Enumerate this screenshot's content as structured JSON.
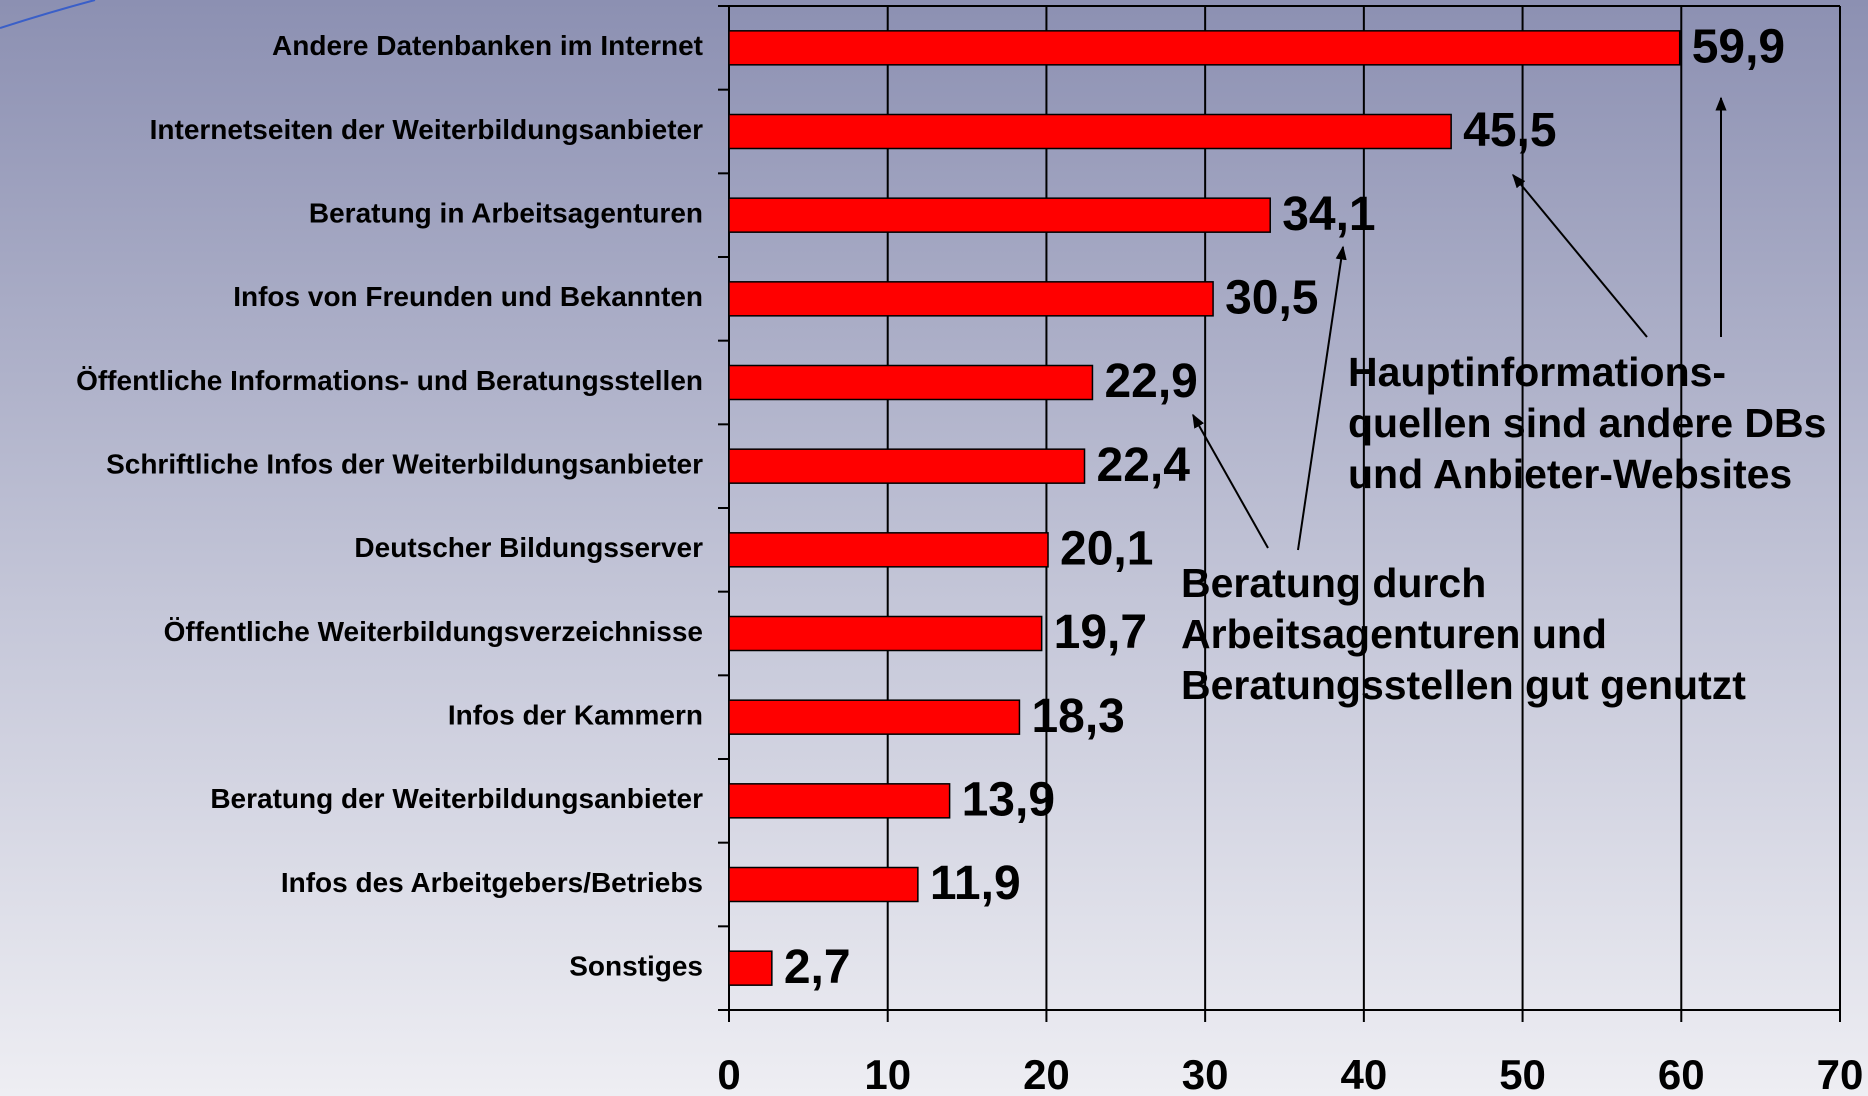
{
  "chart_data": {
    "type": "bar",
    "orientation": "horizontal",
    "categories": [
      "Andere Datenbanken im Internet",
      "Internetseiten der Weiterbildungsanbieter",
      "Beratung in Arbeitsagenturen",
      "Infos von Freunden und Bekannten",
      "Öffentliche Informations- und Beratungsstellen",
      "Schriftliche Infos der Weiterbildungsanbieter",
      "Deutscher Bildungsserver",
      "Öffentliche Weiterbildungsverzeichnisse",
      "Infos der Kammern",
      "Beratung der Weiterbildungsanbieter",
      "Infos des Arbeitgebers/Betriebs",
      "Sonstiges"
    ],
    "values": [
      59.9,
      45.5,
      34.1,
      30.5,
      22.9,
      22.4,
      20.1,
      19.7,
      18.3,
      13.9,
      11.9,
      2.7
    ],
    "value_labels": [
      "59,9",
      "45,5",
      "34,1",
      "30,5",
      "22,9",
      "22,4",
      "20,1",
      "19,7",
      "18,3",
      "13,9",
      "11,9",
      "2,7"
    ],
    "color": "#ff0000",
    "xlim": [
      0,
      70
    ],
    "xticks": [
      0,
      10,
      20,
      30,
      40,
      50,
      60,
      70
    ],
    "grid": true,
    "annotations": [
      [
        "Hauptinformations-",
        "quellen sind andere DBs",
        "und Anbieter-Websites"
      ],
      [
        "Beratung durch",
        "Arbeitsagenturen und",
        "Beratungsstellen gut genutzt"
      ]
    ]
  }
}
